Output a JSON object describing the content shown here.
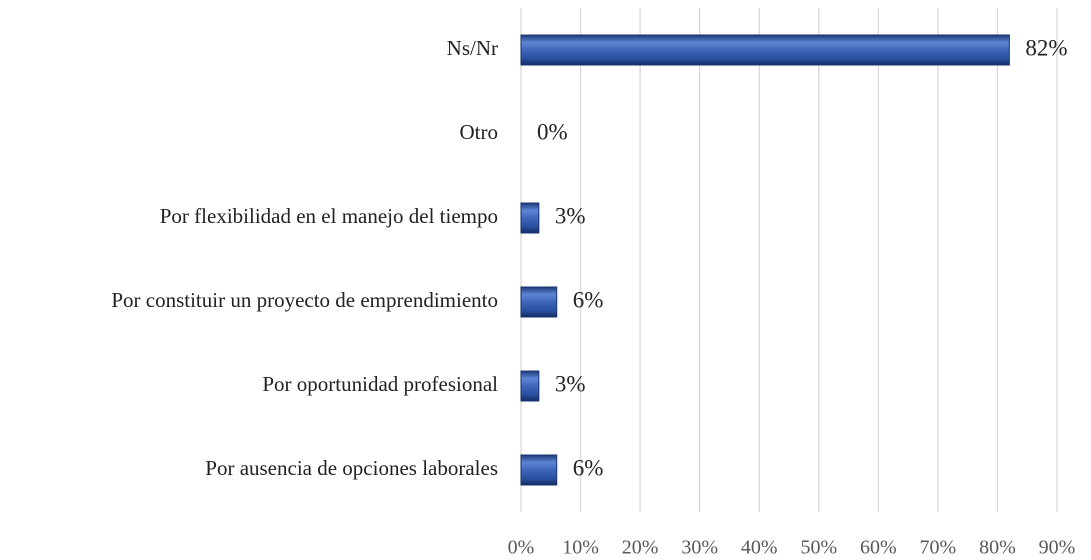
{
  "chart_data": {
    "type": "bar",
    "orientation": "horizontal",
    "categories": [
      "Ns/Nr",
      "Otro",
      "Por flexibilidad en el manejo del tiempo",
      "Por constituir un proyecto de emprendimiento",
      "Por oportunidad profesional",
      "Por ausencia de opciones laborales"
    ],
    "values": [
      82,
      0,
      3,
      6,
      3,
      6
    ],
    "value_labels": [
      "82%",
      "0%",
      "3%",
      "6%",
      "3%",
      "6%"
    ],
    "color": "#2f55a4",
    "xlim": [
      0,
      90
    ],
    "xticks": [
      {
        "value": 0,
        "label": "0%"
      },
      {
        "value": 10,
        "label": "10%"
      },
      {
        "value": 20,
        "label": "20%"
      },
      {
        "value": 30,
        "label": "30%"
      },
      {
        "value": 40,
        "label": "40%"
      },
      {
        "value": 50,
        "label": "50%"
      },
      {
        "value": 60,
        "label": "60%"
      },
      {
        "value": 70,
        "label": "70%"
      },
      {
        "value": 80,
        "label": "80%"
      },
      {
        "value": 90,
        "label": "90%"
      }
    ],
    "grid": true
  }
}
